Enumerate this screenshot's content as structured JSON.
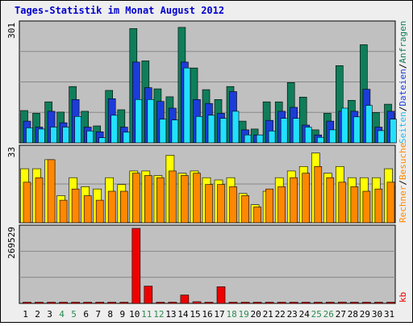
{
  "title": "Tages-Statistik im Monat August 2012",
  "colors": {
    "frame_bg": "#eeeeee",
    "panel_bg": "#c0c0c0",
    "title_color": "#0000cc",
    "hits": "#107d5a",
    "files": "#1c3cd8",
    "pages": "#22e0ff",
    "visits": "#ffff00",
    "sites": "#ff8800",
    "kbytes": "#ee0000",
    "weekend_label": "#2d8a50",
    "weekday_label": "#000000",
    "grid": "#888888"
  },
  "legend": {
    "hits": "Anfragen",
    "files": "Dateien",
    "pages": "Seiten",
    "visits": "Besuche",
    "sites": "Rechner",
    "kbytes": "kb",
    "sep": "/"
  },
  "chart_data": {
    "type": "bar",
    "title": "Tages-Statistik im Monat August 2012",
    "categories": [
      "1",
      "2",
      "3",
      "4",
      "5",
      "6",
      "7",
      "8",
      "9",
      "10",
      "11",
      "12",
      "13",
      "14",
      "15",
      "16",
      "17",
      "18",
      "19",
      "20",
      "21",
      "22",
      "23",
      "24",
      "25",
      "26",
      "27",
      "28",
      "29",
      "30",
      "31"
    ],
    "weekend_days": [
      4,
      5,
      11,
      12,
      18,
      19,
      25,
      26
    ],
    "panels": [
      {
        "name": "hits-files-pages",
        "max_label": "301",
        "ymax": 301,
        "series": [
          {
            "name": "Anfragen",
            "key": "hits",
            "values": [
              82,
              75,
              104,
              78,
              143,
              80,
              43,
              133,
              84,
              290,
              208,
              137,
              117,
              293,
              190,
              135,
              110,
              143,
              55,
              35,
              104,
              104,
              153,
              116,
              33,
              75,
              196,
              108,
              249,
              77,
              98
            ]
          },
          {
            "name": "Dateien",
            "key": "files",
            "values": [
              55,
              40,
              80,
              51,
              110,
              40,
              28,
              112,
              40,
              205,
              140,
              105,
              88,
              205,
              110,
              100,
              75,
              130,
              33,
              20,
              57,
              80,
              90,
              45,
              20,
              55,
              80,
              80,
              136,
              40,
              80
            ]
          },
          {
            "name": "Seiten",
            "key": "pages",
            "values": [
              38,
              35,
              40,
              40,
              67,
              30,
              13,
              70,
              27,
              110,
              110,
              60,
              58,
              190,
              67,
              70,
              62,
              80,
              20,
              20,
              30,
              62,
              62,
              40,
              14,
              33,
              88,
              66,
              95,
              31,
              60
            ]
          }
        ]
      },
      {
        "name": "visits-sites",
        "max_label": "33",
        "ymax": 33,
        "series": [
          {
            "name": "Besuche",
            "key": "visits",
            "values": [
              24,
              24,
              28,
              12,
              20,
              16,
              15,
              20,
              17,
              23,
              23,
              21,
              30,
              22,
              23,
              20,
              19,
              20,
              13,
              8,
              14,
              20,
              23,
              25,
              31,
              22,
              25,
              20,
              20,
              20,
              24
            ]
          },
          {
            "name": "Rechner",
            "key": "sites",
            "values": [
              18,
              20,
              28,
              10,
              15,
              12,
              10,
              14,
              14,
              22,
              21,
              20,
              23,
              21,
              22,
              17,
              17,
              16,
              12,
              7,
              15,
              16,
              20,
              22,
              25,
              20,
              18,
              16,
              14,
              15,
              18
            ]
          }
        ]
      },
      {
        "name": "kbytes",
        "max_label": "269529",
        "ymax": 269529,
        "series": [
          {
            "name": "kb",
            "key": "kbytes",
            "values": [
              200,
              200,
              200,
              200,
              200,
              200,
              200,
              200,
              200,
              269529,
              62000,
              1500,
              4500,
              30000,
              6000,
              1800,
              60000,
              1200,
              900,
              600,
              500,
              500,
              500,
              500,
              500,
              600,
              5000,
              500,
              300,
              300,
              300
            ]
          }
        ]
      }
    ]
  }
}
